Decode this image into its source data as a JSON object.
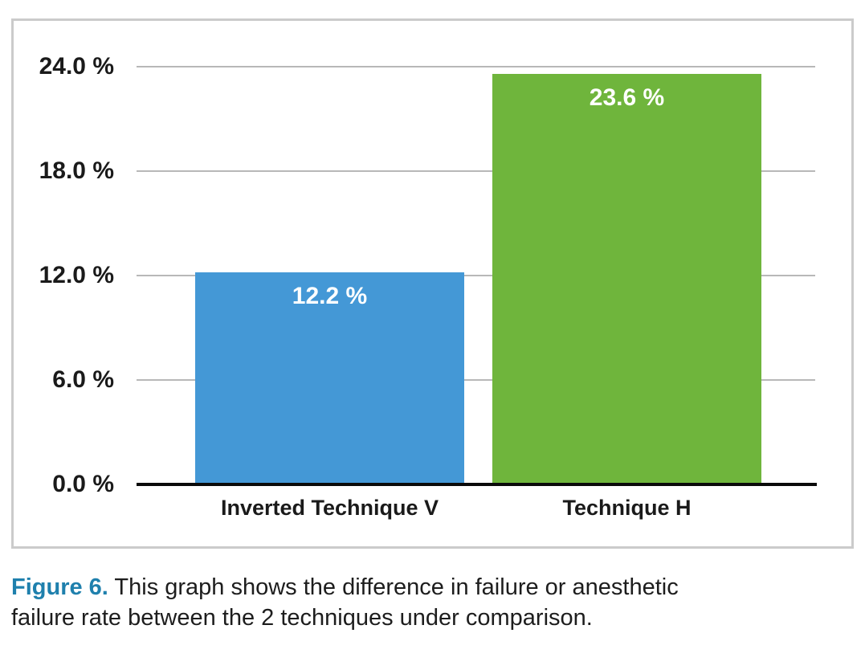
{
  "chart_data": {
    "type": "bar",
    "categories": [
      "Inverted Technique V",
      "Technique H"
    ],
    "values": [
      12.2,
      23.6
    ],
    "bar_labels": [
      "12.2 %",
      "23.6 %"
    ],
    "bar_colors": [
      "#4498d6",
      "#6fb53c"
    ],
    "yticks": [
      {
        "value": 24,
        "label": "24.0 %"
      },
      {
        "value": 18,
        "label": "18.0 %"
      },
      {
        "value": 12,
        "label": "12.0 %"
      },
      {
        "value": 6,
        "label": "6.0 %"
      },
      {
        "value": 0,
        "label": "0.0 %"
      }
    ],
    "ylim": [
      0,
      24
    ],
    "grid": true,
    "legend_position": "none",
    "title": "",
    "xlabel": "",
    "ylabel": ""
  },
  "caption": {
    "label": "Figure 6.",
    "line1": "This graph shows the difference in failure or anesthetic",
    "line2": "failure rate between the 2 techniques under comparison."
  },
  "colors": {
    "caption_label": "#1f80ad",
    "bar_value_text": "#ffffff",
    "axis_line": "#0a0a0a",
    "gridline": "#b8b8b8",
    "panel_border": "#cbcbcb",
    "tick_text": "#1a1a1a",
    "caption_text": "#1d1d1d"
  }
}
